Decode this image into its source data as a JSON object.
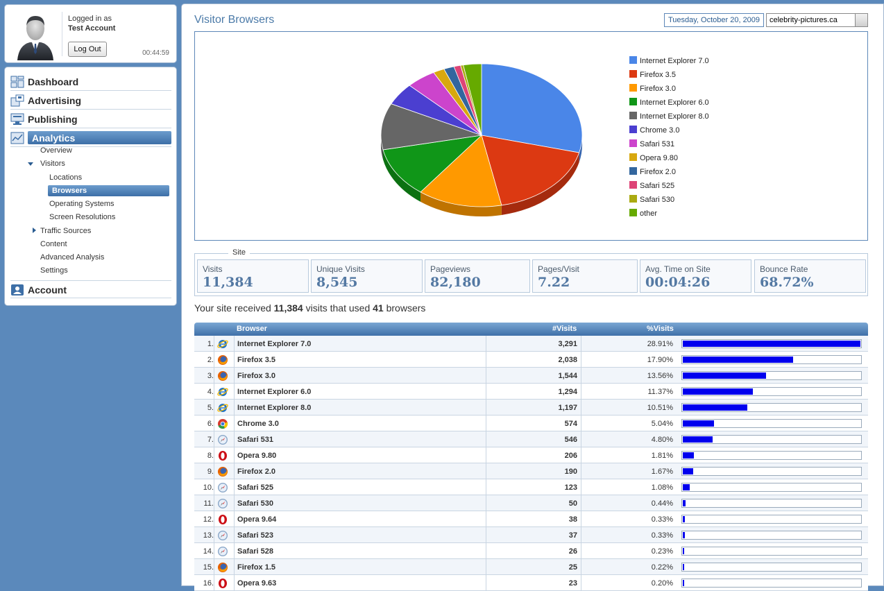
{
  "user": {
    "logged_in_label": "Logged in as",
    "account_name": "Test Account",
    "logout_label": "Log Out",
    "session_time": "00:44:59"
  },
  "nav": {
    "main": [
      {
        "label": "Dashboard",
        "icon": "dashboard-icon"
      },
      {
        "label": "Advertising",
        "icon": "advertising-icon"
      },
      {
        "label": "Publishing",
        "icon": "publishing-icon"
      },
      {
        "label": "Analytics",
        "icon": "analytics-icon",
        "active": true
      },
      {
        "label": "Account",
        "icon": "account-icon"
      }
    ],
    "analytics_sub": {
      "overview": "Overview",
      "visitors": "Visitors",
      "locations": "Locations",
      "browsers": "Browsers",
      "operating_systems": "Operating Systems",
      "screen_resolutions": "Screen Resolutions",
      "traffic_sources": "Traffic Sources",
      "content": "Content",
      "advanced_analysis": "Advanced Analysis",
      "settings": "Settings"
    }
  },
  "header": {
    "title": "Visitor Browsers",
    "date": "Tuesday, October 20, 2009",
    "site": "celebrity-pictures.ca"
  },
  "chart_data": {
    "type": "pie",
    "categories": [
      "Internet Explorer 7.0",
      "Firefox 3.5",
      "Firefox 3.0",
      "Internet Explorer 6.0",
      "Internet Explorer 8.0",
      "Chrome 3.0",
      "Safari 531",
      "Opera 9.80",
      "Firefox 2.0",
      "Safari 525",
      "Safari 530",
      "other"
    ],
    "values": [
      28.91,
      17.9,
      13.56,
      11.37,
      10.51,
      5.04,
      4.8,
      1.81,
      1.67,
      1.08,
      0.44,
      2.91
    ],
    "colors": [
      "#4a86e8",
      "#dc3912",
      "#ff9900",
      "#109618",
      "#666666",
      "#4b3fd0",
      "#cc44cc",
      "#d8a80f",
      "#33669e",
      "#dd4477",
      "#aaaa11",
      "#66aa00"
    ],
    "legend": "right"
  },
  "site_stats": {
    "legend": "Site",
    "items": [
      {
        "label": "Visits",
        "value": "11,384"
      },
      {
        "label": "Unique Visits",
        "value": "8,545"
      },
      {
        "label": "Pageviews",
        "value": "82,180"
      },
      {
        "label": "Pages/Visit",
        "value": "7.22"
      },
      {
        "label": "Avg. Time on Site",
        "value": "00:04:26"
      },
      {
        "label": "Bounce Rate",
        "value": "68.72%"
      }
    ]
  },
  "summary": {
    "prefix": "Your site received ",
    "visits": "11,384",
    "middle": " visits that used ",
    "browsers": "41",
    "suffix": " browsers"
  },
  "table": {
    "headers": {
      "browser": "Browser",
      "visits": "#Visits",
      "pct": "%Visits"
    },
    "rows": [
      {
        "n": "1.",
        "icon": "ie-icon",
        "name": "Internet Explorer 7.0",
        "visits": "3,291",
        "pct": "28.91%",
        "share": 28.91
      },
      {
        "n": "2.",
        "icon": "firefox-icon",
        "name": "Firefox 3.5",
        "visits": "2,038",
        "pct": "17.90%",
        "share": 17.9
      },
      {
        "n": "3.",
        "icon": "firefox-icon",
        "name": "Firefox 3.0",
        "visits": "1,544",
        "pct": "13.56%",
        "share": 13.56
      },
      {
        "n": "4.",
        "icon": "ie-icon",
        "name": "Internet Explorer 6.0",
        "visits": "1,294",
        "pct": "11.37%",
        "share": 11.37
      },
      {
        "n": "5.",
        "icon": "ie-icon",
        "name": "Internet Explorer 8.0",
        "visits": "1,197",
        "pct": "10.51%",
        "share": 10.51
      },
      {
        "n": "6.",
        "icon": "chrome-icon",
        "name": "Chrome 3.0",
        "visits": "574",
        "pct": "5.04%",
        "share": 5.04
      },
      {
        "n": "7.",
        "icon": "safari-icon",
        "name": "Safari 531",
        "visits": "546",
        "pct": "4.80%",
        "share": 4.8
      },
      {
        "n": "8.",
        "icon": "opera-icon",
        "name": "Opera 9.80",
        "visits": "206",
        "pct": "1.81%",
        "share": 1.81
      },
      {
        "n": "9.",
        "icon": "firefox-icon",
        "name": "Firefox 2.0",
        "visits": "190",
        "pct": "1.67%",
        "share": 1.67
      },
      {
        "n": "10.",
        "icon": "safari-icon",
        "name": "Safari 525",
        "visits": "123",
        "pct": "1.08%",
        "share": 1.08
      },
      {
        "n": "11.",
        "icon": "safari-icon",
        "name": "Safari 530",
        "visits": "50",
        "pct": "0.44%",
        "share": 0.44
      },
      {
        "n": "12.",
        "icon": "opera-icon",
        "name": "Opera 9.64",
        "visits": "38",
        "pct": "0.33%",
        "share": 0.33
      },
      {
        "n": "13.",
        "icon": "safari-icon",
        "name": "Safari 523",
        "visits": "37",
        "pct": "0.33%",
        "share": 0.33
      },
      {
        "n": "14.",
        "icon": "safari-icon",
        "name": "Safari 528",
        "visits": "26",
        "pct": "0.23%",
        "share": 0.23
      },
      {
        "n": "15.",
        "icon": "firefox-icon",
        "name": "Firefox 1.5",
        "visits": "25",
        "pct": "0.22%",
        "share": 0.22
      },
      {
        "n": "16.",
        "icon": "opera-icon",
        "name": "Opera 9.63",
        "visits": "23",
        "pct": "0.20%",
        "share": 0.2
      }
    ]
  }
}
